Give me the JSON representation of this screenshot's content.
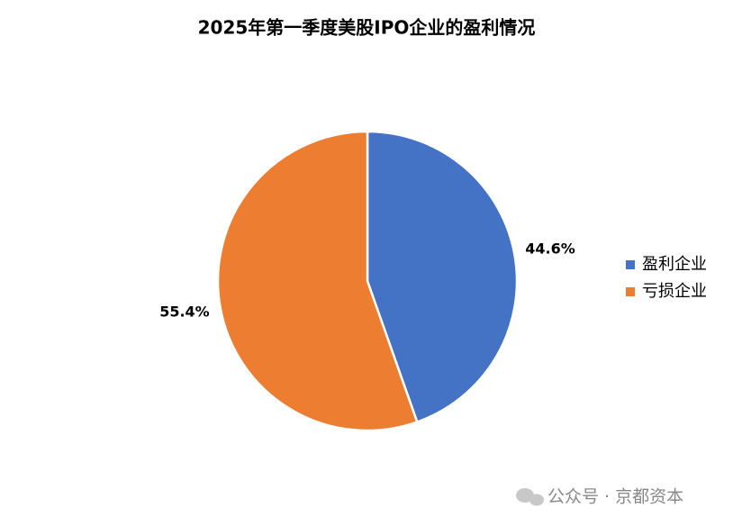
{
  "chart_data": {
    "type": "pie",
    "title": "2025年第一季度美股IPO企业的盈利情况",
    "categories": [
      "盈利企业",
      "亏损企业"
    ],
    "values": [
      44.6,
      55.4
    ],
    "value_labels": [
      "44.6%",
      "55.4%"
    ],
    "colors": [
      "#4472c4",
      "#ed7d31"
    ],
    "legend": "right"
  },
  "watermark": "公众号 · 京都资本"
}
